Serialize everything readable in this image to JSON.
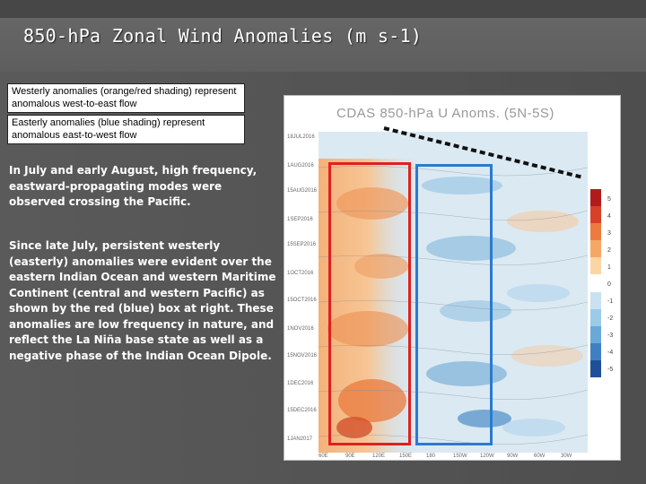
{
  "slide": {
    "title": "850-hPa Zonal Wind Anomalies (m s-1)"
  },
  "legend": {
    "westerly": "Westerly anomalies (orange/red shading) represent anomalous west-to-east flow",
    "easterly": "Easterly anomalies (blue shading) represent anomalous east-to-west flow"
  },
  "body": {
    "paragraph_1": "In July and early August, high frequency, eastward-propagating modes were observed crossing the Pacific.",
    "paragraph_2": "Since late July, persistent westerly (easterly) anomalies were evident over the eastern Indian Ocean and western Maritime Continent (central and western Pacific) as shown by the red (blue) box at right. These anomalies are low frequency in nature, and reflect the La Niña base state as well as a negative phase of the Indian Ocean Dipole."
  },
  "figure": {
    "title": "CDAS 850-hPa U Anoms. (5N-5S)",
    "y_labels": [
      "18JUL2016",
      "1AUG2016",
      "15AUG2016",
      "1SEP2016",
      "15SEP2016",
      "1OCT2016",
      "15OCT2016",
      "1NOV2016",
      "15NOV2016",
      "1DEC2016",
      "15DEC2016",
      "1JAN2017"
    ],
    "x_labels": [
      "60E",
      "90E",
      "120E",
      "150E",
      "180",
      "150W",
      "120W",
      "90W",
      "60W",
      "30W"
    ],
    "colorbar_labels": [
      "5",
      "4",
      "3",
      "2",
      "1",
      "0",
      "-1",
      "-2",
      "-3",
      "-4",
      "-5"
    ],
    "colorbar_colors": [
      "#b01c1c",
      "#d8402a",
      "#ee7a40",
      "#f6a764",
      "#fbd6a4",
      "#ffffff",
      "#c8e2f2",
      "#9ccbe8",
      "#6aa8d8",
      "#3f7fc2",
      "#1f4f9a"
    ],
    "boxes": {
      "red_color": "#e02020",
      "blue_color": "#2a7bd0"
    }
  }
}
